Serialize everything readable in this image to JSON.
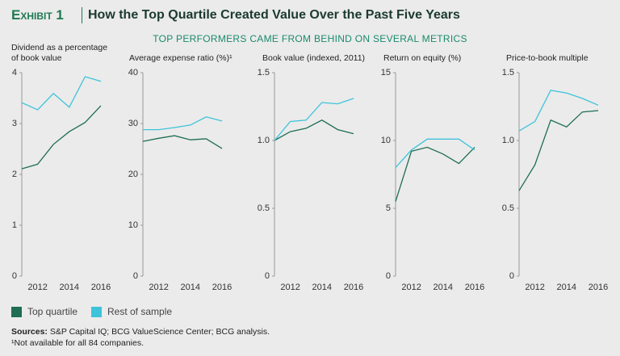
{
  "exhibit": "Exhibit 1",
  "title": "How the Top Quartile Created Value Over the Past Five Years",
  "subtitle": "TOP PERFORMERS CAME FROM BEHIND ON SEVERAL METRICS",
  "legend": [
    {
      "name": "Top quartile",
      "color": "#1f6e52"
    },
    {
      "name": "Rest of sample",
      "color": "#3ec3da"
    }
  ],
  "sources_label": "Sources:",
  "sources": "S&P Capital IQ; BCG ValueScience Center; BCG analysis.",
  "footnote": "¹Not available for all 84 companies.",
  "chart_data": [
    {
      "type": "line",
      "title": "Dividend as a percentage of book value",
      "x": [
        2011,
        2012,
        2013,
        2014,
        2015,
        2016
      ],
      "xlim": [
        2011,
        2016
      ],
      "xticks": [
        2012,
        2014,
        2016
      ],
      "ylim": [
        0,
        4
      ],
      "yticks": [
        0,
        1,
        2,
        3,
        4
      ],
      "series": [
        {
          "values": [
            2.11,
            2.2,
            2.59,
            2.84,
            3.02,
            3.35
          ]
        },
        {
          "values": [
            3.41,
            3.27,
            3.59,
            3.32,
            3.92,
            3.83
          ]
        }
      ]
    },
    {
      "type": "line",
      "title": "Average expense ratio (%)¹",
      "x": [
        2011,
        2012,
        2013,
        2014,
        2015,
        2016
      ],
      "xlim": [
        2011,
        2016
      ],
      "xticks": [
        2012,
        2014,
        2016
      ],
      "ylim": [
        0,
        40
      ],
      "yticks": [
        0,
        10,
        20,
        30,
        40
      ],
      "series": [
        {
          "values": [
            26.5,
            27.1,
            27.6,
            26.8,
            27.0,
            25.1
          ]
        },
        {
          "values": [
            28.8,
            28.8,
            29.2,
            29.7,
            31.3,
            30.5
          ]
        }
      ]
    },
    {
      "type": "line",
      "title": "Book value (indexed, 2011)",
      "x": [
        2011,
        2012,
        2013,
        2014,
        2015,
        2016
      ],
      "xlim": [
        2011,
        2016
      ],
      "xticks": [
        2012,
        2014,
        2016
      ],
      "ylim": [
        0,
        1.5
      ],
      "yticks": [
        0,
        0.5,
        {
          "value": 1,
          "label": "1.0"
        },
        1.5
      ],
      "series": [
        {
          "values": [
            1.0,
            1.065,
            1.09,
            1.15,
            1.08,
            1.05
          ]
        },
        {
          "values": [
            1.0,
            1.14,
            1.15,
            1.28,
            1.27,
            1.31
          ]
        }
      ]
    },
    {
      "type": "line",
      "title": "Return on equity (%)",
      "x": [
        2011,
        2012,
        2013,
        2014,
        2015,
        2016
      ],
      "xlim": [
        2011,
        2016
      ],
      "xticks": [
        2012,
        2014,
        2016
      ],
      "ylim": [
        0,
        15
      ],
      "yticks": [
        0,
        5,
        10,
        15
      ],
      "series": [
        {
          "values": [
            5.5,
            9.2,
            9.5,
            9.0,
            8.3,
            9.5
          ]
        },
        {
          "values": [
            8.0,
            9.3,
            10.1,
            10.1,
            10.1,
            9.3
          ]
        }
      ]
    },
    {
      "type": "line",
      "title": "Price-to-book multiple",
      "x": [
        2011,
        2012,
        2013,
        2014,
        2015,
        2016
      ],
      "xlim": [
        2011,
        2016
      ],
      "xticks": [
        2012,
        2014,
        2016
      ],
      "ylim": [
        0,
        1.5
      ],
      "yticks": [
        0,
        0.5,
        {
          "value": 1,
          "label": "1.0"
        },
        1.5
      ],
      "series": [
        {
          "values": [
            0.63,
            0.82,
            1.15,
            1.1,
            1.21,
            1.22
          ]
        },
        {
          "values": [
            1.07,
            1.14,
            1.37,
            1.35,
            1.31,
            1.26
          ]
        }
      ]
    }
  ]
}
